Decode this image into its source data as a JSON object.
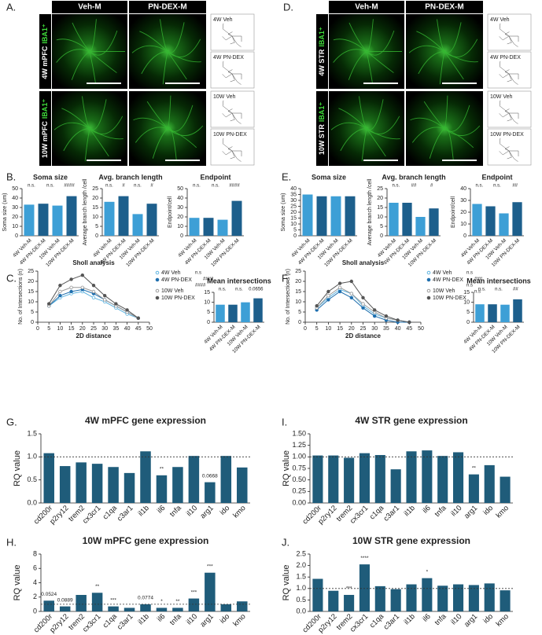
{
  "images": [
    {
      "label": "A.",
      "columns": [
        "Veh-M",
        "PN-DEX-M"
      ],
      "rows": [
        {
          "region": "4W mPFC",
          "marker": "IBA1⁺"
        },
        {
          "region": "10W mPFC",
          "marker": "IBA1⁺"
        }
      ],
      "traces": [
        "4W Veh",
        "4W PN-DEX",
        "10W Veh",
        "10W PN-DEX"
      ]
    },
    {
      "label": "D.",
      "columns": [
        "Veh-M",
        "PN-DEX-M"
      ],
      "rows": [
        {
          "region": "4W STR",
          "marker": "IBA1⁺"
        },
        {
          "region": "10W STR",
          "marker": "IBA1⁺"
        }
      ],
      "traces": [
        "4W Veh",
        "4W PN-DEX",
        "10W Veh",
        "10W PN-DEX"
      ]
    }
  ],
  "chart_data": [
    {
      "type": "bar",
      "panel": "B.",
      "title": "Soma size",
      "ylabel": "Soma size (um)",
      "categories": [
        "4W Veh-M",
        "4W PN-DEX-M",
        "10W Veh-M",
        "10W PN-DEX-M"
      ],
      "values": [
        33,
        34,
        32,
        42
      ],
      "colors": [
        "#3d9fd6",
        "#1d5f8c",
        "#3d9fd6",
        "#1d5f8c"
      ],
      "ylim": [
        0,
        50
      ],
      "yticks": [
        0,
        10,
        20,
        30,
        40,
        50
      ],
      "annotations": [
        "n.s.",
        "n.s.",
        "####"
      ]
    },
    {
      "type": "bar",
      "title": "Avg. branch length",
      "ylabel": "Average branch length /cell",
      "categories": [
        "4W Veh-M",
        "4W PN-DEX-M",
        "10W Veh-M",
        "10W PN-DEX-M"
      ],
      "values": [
        18,
        21,
        11.5,
        17
      ],
      "colors": [
        "#3d9fd6",
        "#1d5f8c",
        "#3d9fd6",
        "#1d5f8c"
      ],
      "ylim": [
        0,
        25
      ],
      "yticks": [
        0,
        5,
        10,
        15,
        20,
        25
      ],
      "annotations": [
        "n.s.",
        "#",
        "n.s.",
        "#"
      ]
    },
    {
      "type": "bar",
      "title": "Endpoint",
      "ylabel": "Endpoint/cell",
      "categories": [
        "4W Veh-M",
        "4W PN-DEX-M",
        "10W Veh-M",
        "10W PN-DEX-M"
      ],
      "values": [
        19,
        19,
        17,
        37
      ],
      "colors": [
        "#3d9fd6",
        "#1d5f8c",
        "#3d9fd6",
        "#1d5f8c"
      ],
      "ylim": [
        0,
        50
      ],
      "yticks": [
        0,
        10,
        20,
        30,
        40,
        50
      ],
      "annotations": [
        "n.s.",
        "n.s.",
        "####"
      ]
    },
    {
      "type": "bar",
      "panel": "E.",
      "title": "Soma size",
      "ylabel": "Soma size (um)",
      "categories": [
        "4W Veh-M",
        "4W PN-DEX-M",
        "10W Veh-M",
        "10W PN-DEX-M"
      ],
      "values": [
        35,
        33.5,
        33.5,
        33.5
      ],
      "colors": [
        "#3d9fd6",
        "#1d5f8c",
        "#3d9fd6",
        "#1d5f8c"
      ],
      "ylim": [
        0,
        40
      ],
      "yticks": [
        0,
        5,
        10,
        15,
        20,
        25,
        30,
        35,
        40
      ],
      "annotations": []
    },
    {
      "type": "bar",
      "title": "Avg. branch length",
      "ylabel": "Average branch length /cell",
      "categories": [
        "4W Veh-M",
        "4W PN-DEX-M",
        "10W Veh-M",
        "10W PN-DEX-M"
      ],
      "values": [
        17.5,
        17.5,
        10,
        14.5
      ],
      "colors": [
        "#3d9fd6",
        "#1d5f8c",
        "#3d9fd6",
        "#1d5f8c"
      ],
      "ylim": [
        0,
        25
      ],
      "yticks": [
        0,
        5,
        10,
        15,
        20,
        25
      ],
      "annotations": [
        "n.s.",
        "##",
        "#"
      ]
    },
    {
      "type": "bar",
      "title": "Endpoint",
      "ylabel": "Endpoint/cell",
      "categories": [
        "4W Veh-M",
        "4W PN-DEX-M",
        "10W Veh-M",
        "10W PN-DEX-M"
      ],
      "values": [
        27,
        25,
        19,
        28.5
      ],
      "colors": [
        "#3d9fd6",
        "#1d5f8c",
        "#3d9fd6",
        "#1d5f8c"
      ],
      "ylim": [
        0,
        40
      ],
      "yticks": [
        0,
        10,
        20,
        30,
        40
      ],
      "annotations": [
        "n.s.",
        "n.s.",
        "##"
      ]
    },
    {
      "type": "line",
      "panel": "C.",
      "title": "Sholl analysis",
      "xlabel": "2D distance",
      "ylabel": "No. of Intersections (n)",
      "x": [
        5,
        10,
        15,
        20,
        25,
        30,
        35,
        40,
        45
      ],
      "xlim": [
        0,
        50
      ],
      "xticks": [
        0,
        5,
        10,
        15,
        20,
        25,
        30,
        35,
        40,
        45,
        50
      ],
      "ylim": [
        0,
        25
      ],
      "yticks": [
        0,
        5,
        10,
        15,
        20,
        25
      ],
      "series": [
        {
          "name": "4W Veh",
          "color": "#5fb4e0",
          "values": [
            8,
            12,
            14,
            15,
            12,
            10,
            7,
            4,
            2
          ]
        },
        {
          "name": "4W PN-DEX",
          "color": "#1f6fae",
          "values": [
            8,
            13,
            15,
            16,
            14,
            11,
            8,
            5,
            2
          ]
        },
        {
          "name": "10W Veh",
          "color": "#999999",
          "values": [
            8,
            15,
            17,
            17,
            15,
            11,
            8,
            5,
            2
          ]
        },
        {
          "name": "10W PN-DEX",
          "color": "#555555",
          "values": [
            9,
            18,
            21,
            23,
            18,
            13,
            9,
            6,
            2
          ]
        }
      ],
      "annotations": [
        "n.s",
        "####",
        "####"
      ]
    },
    {
      "type": "bar",
      "title": "Mean intersections",
      "categories": [
        "4W Veh-M",
        "4W PN-DEX-M",
        "10W Veh-M",
        "10W PN-DEX-M"
      ],
      "values": [
        8.8,
        8.8,
        10,
        12
      ],
      "colors": [
        "#3d9fd6",
        "#1d5f8c",
        "#3d9fd6",
        "#1d5f8c"
      ],
      "ylim": [
        0,
        15
      ],
      "yticks": [
        0,
        5,
        10,
        15
      ],
      "annotations": [
        "n.s.",
        "n.s.",
        "0.0656"
      ]
    },
    {
      "type": "line",
      "panel": "F.",
      "title": "Sholl analysis",
      "xlabel": "2D distance",
      "ylabel": "No. of Intersections (n)",
      "x": [
        5,
        10,
        15,
        20,
        25,
        30,
        35,
        40,
        45
      ],
      "xlim": [
        0,
        50
      ],
      "xticks": [
        0,
        5,
        10,
        15,
        20,
        25,
        30,
        35,
        40,
        45,
        50
      ],
      "ylim": [
        0,
        25
      ],
      "yticks": [
        0,
        5,
        10,
        15,
        20,
        25
      ],
      "series": [
        {
          "name": "4W Veh",
          "color": "#5fb4e0",
          "values": [
            7,
            12,
            16,
            14,
            8,
            4,
            2,
            1,
            0
          ]
        },
        {
          "name": "4W PN-DEX",
          "color": "#1f6fae",
          "values": [
            6,
            11,
            15,
            12,
            7,
            3,
            1,
            0,
            0
          ]
        },
        {
          "name": "10W Veh",
          "color": "#999999",
          "values": [
            7,
            13,
            17,
            14,
            9,
            5,
            2,
            1,
            0
          ]
        },
        {
          "name": "10W PN-DEX",
          "color": "#555555",
          "values": [
            8,
            15,
            19,
            20,
            12,
            6,
            3,
            1,
            0
          ]
        }
      ],
      "annotations": [
        "n.s",
        "###",
        "n.s",
        "n.s"
      ]
    },
    {
      "type": "bar",
      "title": "Mean intersections",
      "categories": [
        "4W Veh-M",
        "4W PN-DEX-M",
        "10W Veh-M",
        "10W PN-DEX-M"
      ],
      "values": [
        9,
        9,
        8.8,
        11.5
      ],
      "colors": [
        "#3d9fd6",
        "#1d5f8c",
        "#3d9fd6",
        "#1d5f8c"
      ],
      "ylim": [
        0,
        15
      ],
      "yticks": [
        0,
        5,
        10,
        15
      ],
      "annotations": [
        "n.s.",
        "n.s.",
        "##"
      ]
    },
    {
      "type": "gene",
      "panel": "G.",
      "title": "4W mPFC gene expression",
      "ylabel": "RQ value",
      "categories": [
        "cd200r",
        "p2ry12",
        "trem2",
        "cx3cr1",
        "c1qa",
        "c3ar1",
        "il1b",
        "il6",
        "tnfa",
        "il10",
        "arg1",
        "ido",
        "kmo"
      ],
      "values": [
        1.08,
        0.8,
        0.88,
        0.85,
        0.78,
        0.65,
        1.12,
        0.6,
        0.78,
        1.02,
        0.45,
        1.02,
        0.77
      ],
      "color": "#1f5c7a",
      "ylim": [
        0,
        1.5
      ],
      "yticks": [
        {
          "value": 0,
          "label": "0.0"
        },
        {
          "value": 0.5,
          "label": "0.5"
        },
        {
          "value": 1,
          "label": "1.0"
        },
        {
          "value": 1.5,
          "label": "1.5"
        }
      ],
      "refline": 1,
      "annotations": [
        {
          "text": "**",
          "category": "il6"
        },
        {
          "text": "0.0668",
          "category": "arg1"
        }
      ]
    },
    {
      "type": "gene",
      "panel": "I.",
      "title": "4W STR gene expression",
      "ylabel": "RQ value",
      "categories": [
        "cd200r",
        "p2ry12",
        "trem2",
        "cx3cr1",
        "c1qa",
        "c3ar1",
        "il1b",
        "il6",
        "tnfa",
        "il10",
        "arg1",
        "ido",
        "kmo"
      ],
      "values": [
        1.03,
        1.03,
        0.98,
        1.08,
        1.04,
        0.73,
        1.12,
        1.14,
        1.02,
        1.1,
        0.62,
        0.82,
        0.57
      ],
      "color": "#1f5c7a",
      "ylim": [
        0,
        1.5
      ],
      "yticks": [
        {
          "value": 0,
          "label": "0.00"
        },
        {
          "value": 0.25,
          "label": "0.25"
        },
        {
          "value": 0.5,
          "label": "0.50"
        },
        {
          "value": 0.75,
          "label": "0.75"
        },
        {
          "value": 1,
          "label": "1.00"
        },
        {
          "value": 1.25,
          "label": "1.25"
        },
        {
          "value": 1.5,
          "label": "1.50"
        }
      ],
      "refline": 1,
      "annotations": [
        {
          "text": "**",
          "category": "arg1"
        }
      ]
    },
    {
      "type": "gene",
      "panel": "H.",
      "title": "10W mPFC gene expression",
      "ylabel": "RQ value",
      "categories": [
        "cd200r",
        "p2ry12",
        "trem2",
        "cx3cr1",
        "c1qa",
        "c3ar1",
        "il1b",
        "il6",
        "tnfa",
        "il10",
        "arg1",
        "ido",
        "kmo"
      ],
      "values": [
        1.5,
        0.7,
        2.3,
        2.6,
        0.7,
        0.5,
        1.0,
        0.5,
        0.5,
        1.8,
        5.4,
        1.0,
        1.4
      ],
      "color": "#1f5c7a",
      "ylim": [
        0,
        8
      ],
      "yticks": [
        0,
        2,
        4,
        6,
        8
      ],
      "refline": 1,
      "annotations": [
        {
          "text": "0.0524",
          "category": "cd200r"
        },
        {
          "text": "0.0889",
          "category": "p2ry12"
        },
        {
          "text": "**",
          "category": "cx3cr1"
        },
        {
          "text": "***",
          "category": "c1qa"
        },
        {
          "text": "0.0774",
          "category": "il1b"
        },
        {
          "text": "*",
          "category": "il6"
        },
        {
          "text": "**",
          "category": "tnfa"
        },
        {
          "text": "***",
          "category": "il10"
        },
        {
          "text": "***",
          "category": "arg1"
        }
      ]
    },
    {
      "type": "gene",
      "panel": "J.",
      "title": "10W STR gene expression",
      "ylabel": "RQ value",
      "categories": [
        "cd200r",
        "p2ry12",
        "trem2",
        "cx3cr1",
        "c1qa",
        "c3ar1",
        "il1b",
        "il6",
        "tnfa",
        "il10",
        "arg1",
        "ido",
        "kmo"
      ],
      "values": [
        1.42,
        0.9,
        0.72,
        2.05,
        1.1,
        0.97,
        1.18,
        1.45,
        1.12,
        1.18,
        1.15,
        1.22,
        0.92
      ],
      "color": "#1f5c7a",
      "ylim": [
        0,
        2.5
      ],
      "yticks": [
        {
          "value": 0,
          "label": "0.0"
        },
        {
          "value": 0.5,
          "label": "0.5"
        },
        {
          "value": 1,
          "label": "1.0"
        },
        {
          "value": 1.5,
          "label": "1.5"
        },
        {
          "value": 2,
          "label": "2.0"
        },
        {
          "value": 2.5,
          "label": "2.5"
        }
      ],
      "refline": 1,
      "annotations": [
        {
          "text": "***",
          "category": "trem2"
        },
        {
          "text": "****",
          "category": "cx3cr1"
        },
        {
          "text": "*",
          "category": "il6"
        }
      ]
    }
  ]
}
